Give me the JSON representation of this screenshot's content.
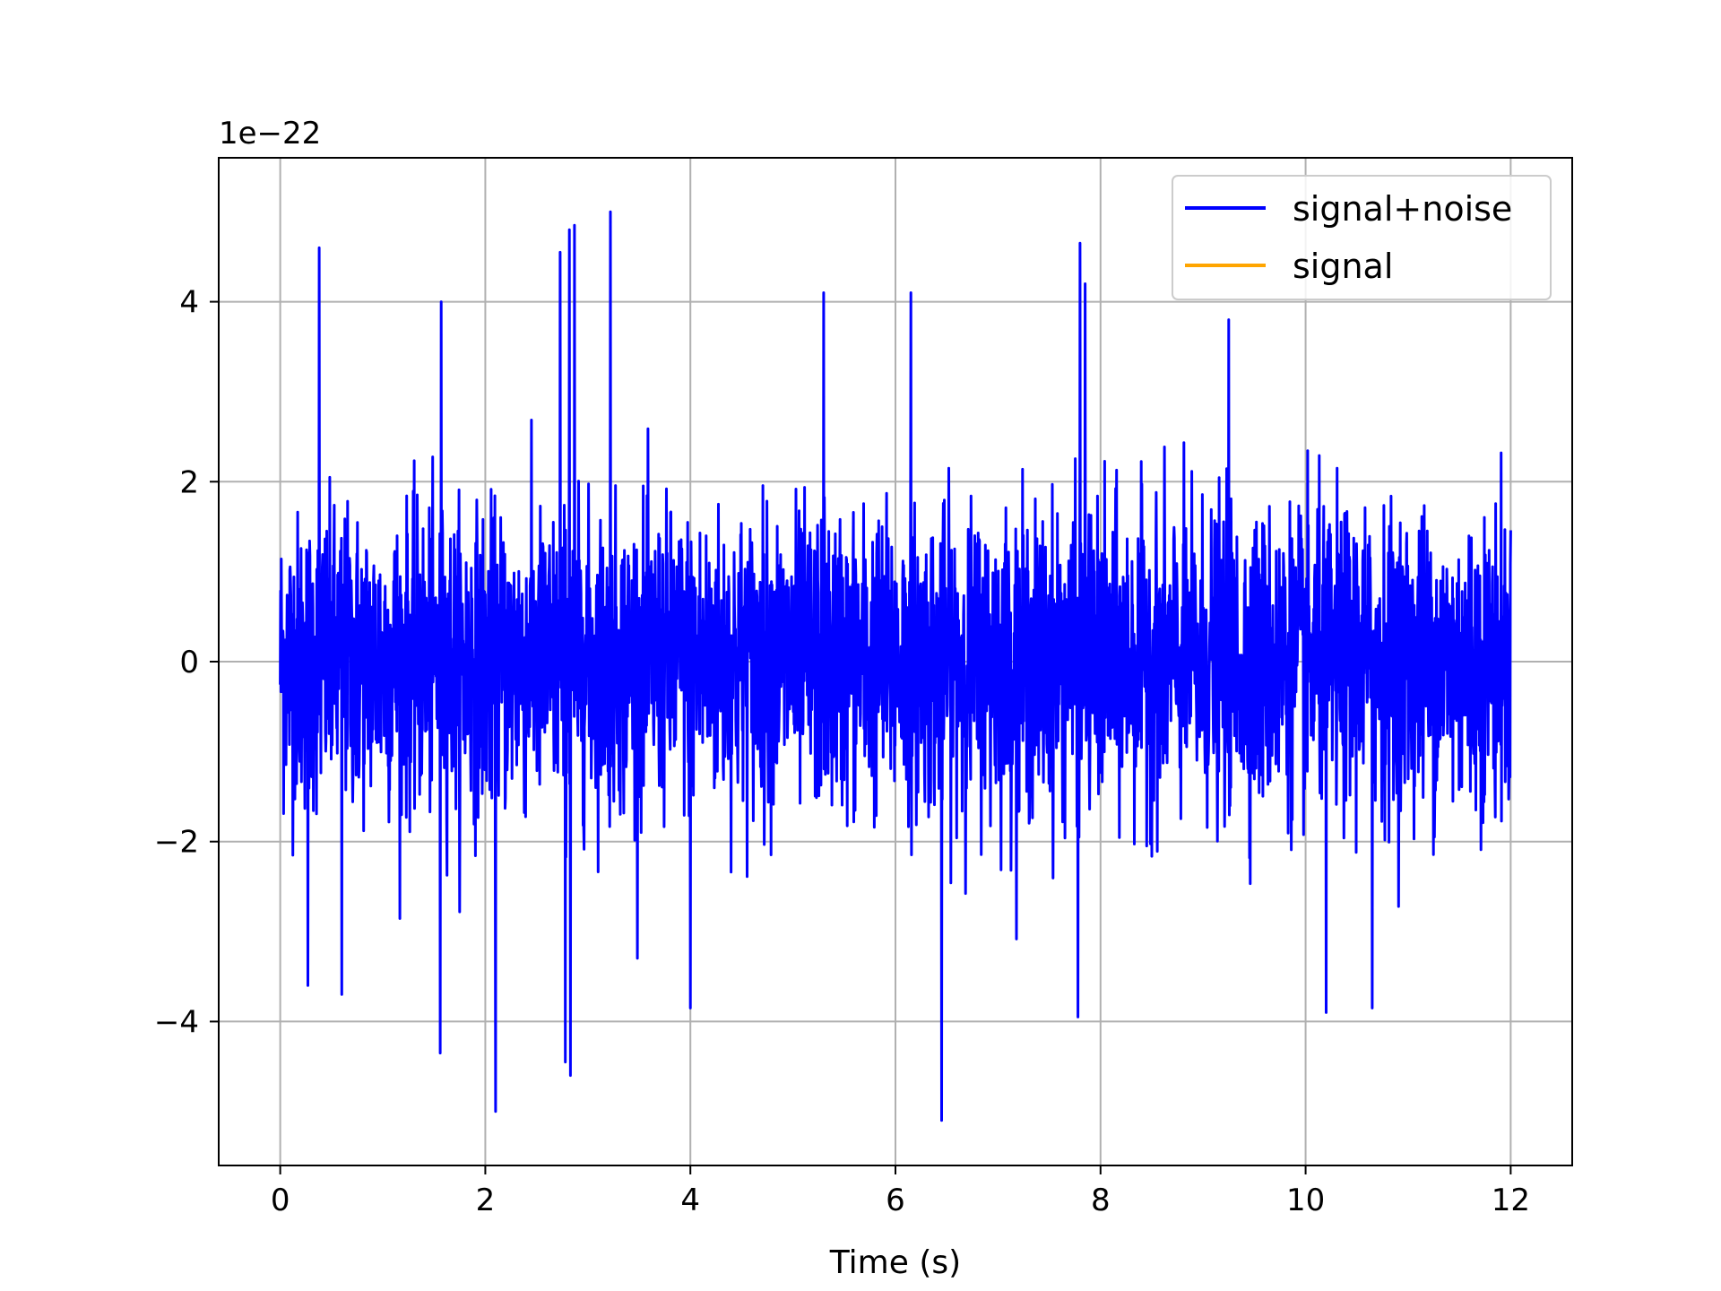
{
  "chart_data": {
    "type": "line",
    "xlabel": "Time (s)",
    "ylabel": "",
    "offset_label": "1e−22",
    "xlim": [
      -0.6,
      12.6
    ],
    "ylim": [
      -5.6,
      5.6
    ],
    "xticks": [
      0,
      2,
      4,
      6,
      8,
      10,
      12
    ],
    "yticks": [
      -4,
      -2,
      0,
      2,
      4
    ],
    "xtick_labels": [
      "0",
      "2",
      "4",
      "6",
      "8",
      "10",
      "12"
    ],
    "ytick_labels": [
      "−4",
      "−2",
      "0",
      "2",
      "4"
    ],
    "grid": true,
    "legend": "top-right",
    "series": [
      {
        "name": "signal+noise",
        "color": "#0000ff",
        "x_range": [
          0,
          12
        ],
        "amplitude_std": 1.0,
        "peak_samples": [
          {
            "x": 0.38,
            "y": 4.6
          },
          {
            "x": 1.57,
            "y": 4.0
          },
          {
            "x": 2.73,
            "y": 4.55
          },
          {
            "x": 2.82,
            "y": 4.8
          },
          {
            "x": 2.87,
            "y": 4.85
          },
          {
            "x": 3.22,
            "y": 5.0
          },
          {
            "x": 5.3,
            "y": 4.1
          },
          {
            "x": 6.15,
            "y": 4.1
          },
          {
            "x": 7.8,
            "y": 4.65
          },
          {
            "x": 7.85,
            "y": 4.2
          },
          {
            "x": 9.25,
            "y": 3.8
          },
          {
            "x": 1.56,
            "y": -4.35
          },
          {
            "x": 2.1,
            "y": -5.0
          },
          {
            "x": 2.78,
            "y": -4.45
          },
          {
            "x": 2.83,
            "y": -4.6
          },
          {
            "x": 4.0,
            "y": -3.85
          },
          {
            "x": 6.45,
            "y": -5.1
          },
          {
            "x": 7.78,
            "y": -3.95
          },
          {
            "x": 10.2,
            "y": -3.9
          },
          {
            "x": 10.65,
            "y": -3.85
          },
          {
            "x": 0.6,
            "y": -3.7
          },
          {
            "x": 0.27,
            "y": -3.6
          }
        ]
      },
      {
        "name": "signal",
        "color": "#ffa500",
        "values": []
      }
    ]
  }
}
